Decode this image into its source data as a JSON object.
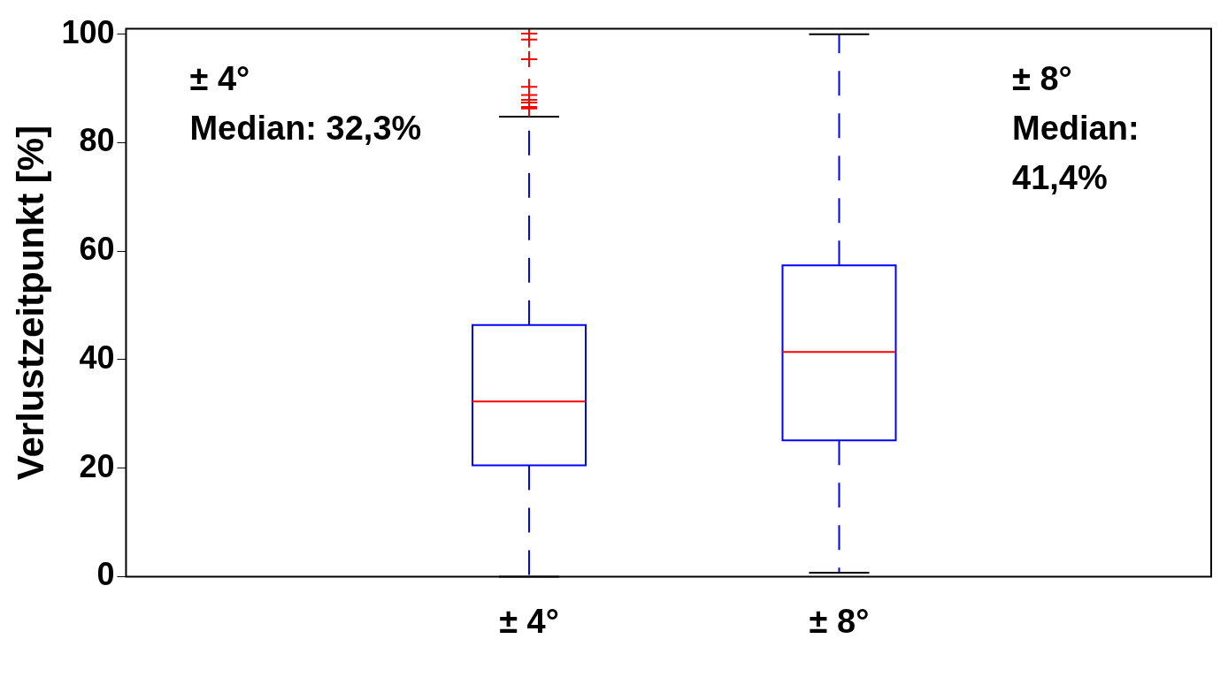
{
  "chart_data": {
    "type": "box",
    "ylabel": "Verlustzeitpunkt [%]",
    "categories": [
      "± 4°",
      "± 8°"
    ],
    "series": [
      {
        "color": "#0000ff",
        "boxes": [
          {
            "low": 0,
            "q1": 20.5,
            "median": 32.3,
            "q3": 46.4,
            "high": 84.8,
            "outliers": [
              100.1,
              99,
              95.4,
              90.3,
              88.8,
              87.9,
              87.4,
              86.6,
              86.3
            ]
          },
          {
            "low": 0.7,
            "q1": 25.1,
            "median": 41.4,
            "q3": 57.4,
            "high": 100
          }
        ]
      }
    ],
    "ylim": [
      0,
      101
    ],
    "yticks": [
      0,
      20,
      40,
      60,
      80,
      100
    ],
    "grid": false,
    "legend": false,
    "marker": "cross",
    "annotations": [
      "± 4°\nMedian: 32,3%",
      "± 8°\nMedian:\n41,4%"
    ]
  }
}
